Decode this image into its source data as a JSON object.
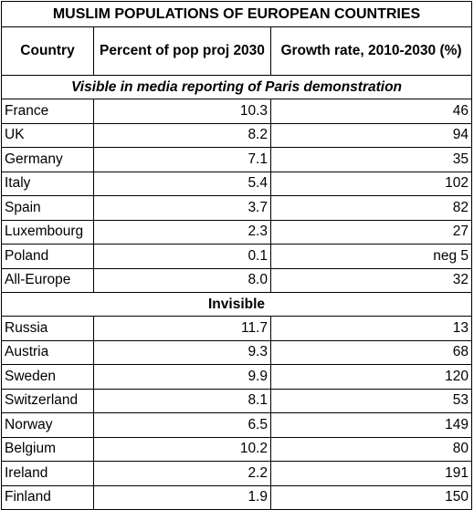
{
  "title": "MUSLIM POPULATIONS OF EUROPEAN COUNTRIES",
  "headers": {
    "country": "Country",
    "percent": "Percent of pop proj 2030",
    "growth": "Growth rate, 2010-2030 (%)"
  },
  "sections": [
    {
      "label": "Visible in media reporting of Paris demonstration",
      "rows": [
        {
          "country": "France",
          "percent": "10.3",
          "growth": "46"
        },
        {
          "country": "UK",
          "percent": "8.2",
          "growth": "94"
        },
        {
          "country": "Germany",
          "percent": "7.1",
          "growth": "35"
        },
        {
          "country": "Italy",
          "percent": "5.4",
          "growth": "102"
        },
        {
          "country": "Spain",
          "percent": "3.7",
          "growth": "82"
        },
        {
          "country": "Luxembourg",
          "percent": "2.3",
          "growth": "27"
        },
        {
          "country": "Poland",
          "percent": "0.1",
          "growth": "neg 5"
        },
        {
          "country": "All-Europe",
          "percent": "8.0",
          "growth": "32"
        }
      ]
    },
    {
      "label": "Invisible",
      "rows": [
        {
          "country": "Russia",
          "percent": "11.7",
          "growth": "13"
        },
        {
          "country": "Austria",
          "percent": "9.3",
          "growth": "68"
        },
        {
          "country": "Sweden",
          "percent": "9.9",
          "growth": "120"
        },
        {
          "country": "Switzerland",
          "percent": "8.1",
          "growth": "53"
        },
        {
          "country": "Norway",
          "percent": "6.5",
          "growth": "149"
        },
        {
          "country": "Belgium",
          "percent": "10.2",
          "growth": "80"
        },
        {
          "country": "Ireland",
          "percent": "2.2",
          "growth": "191"
        },
        {
          "country": "Finland",
          "percent": "1.9",
          "growth": "150"
        }
      ]
    }
  ]
}
